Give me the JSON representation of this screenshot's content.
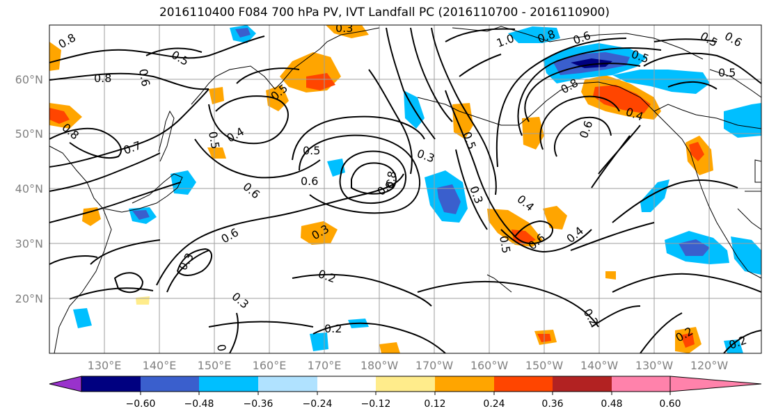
{
  "title": "2016110400 F084 700 hPa PV, IVT Landfall PC (2016110700 - 2016110900)",
  "lat_labels": [
    "60°N",
    "50°N",
    "40°N",
    "30°N",
    "20°N"
  ],
  "lon_labels": [
    "130°E",
    "140°E",
    "150°E",
    "160°E",
    "170°E",
    "180°W",
    "170°W",
    "160°W",
    "150°W",
    "140°W",
    "130°W",
    "120°W"
  ],
  "colorbar": {
    "tick_labels": [
      "−0.60",
      "−0.48",
      "−0.36",
      "−0.24",
      "−0.12",
      "0.12",
      "0.24",
      "0.36",
      "0.48",
      "0.60"
    ],
    "colors": [
      "#9932cc",
      "#000080",
      "#3a5fcd",
      "#00bfff",
      "#b0e2ff",
      "#ffffff",
      "#ffec8b",
      "#ffa500",
      "#ff4500",
      "#b22222",
      "#ff82ab"
    ]
  },
  "contour_labels": [
    "0.8",
    "0.5",
    "0.8",
    "0.6",
    "0.5",
    "0.3",
    "1.0",
    "0.8",
    "0.6",
    "0.5",
    "0.5",
    "0.6",
    "0.5",
    "0.8",
    "0.8",
    "0.4",
    "0.5",
    "0.4",
    "0.7",
    "0.5",
    "0.3",
    "0.5",
    "0.6",
    "0.6",
    "0.6",
    "0.6",
    "0.8",
    "0.3",
    "0.4",
    "0.6",
    "0.4",
    "0.3",
    "0.6",
    "0.5",
    "0.3",
    "0.2",
    "0.3",
    "0.2",
    "0.2",
    "0.2",
    "0.2",
    "0.2"
  ]
}
